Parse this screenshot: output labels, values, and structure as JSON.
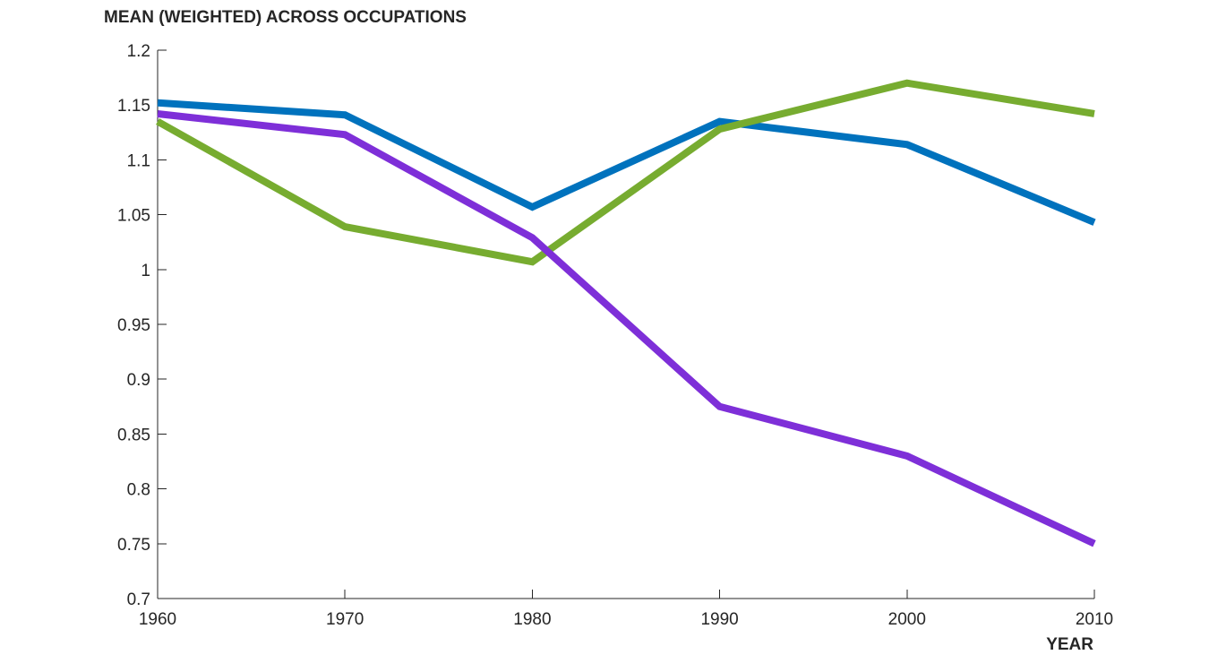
{
  "chart_data": {
    "type": "line",
    "title": "",
    "ylabel": "MEAN (WEIGHTED) ACROSS OCCUPATIONS",
    "xlabel": "YEAR",
    "x": [
      1960,
      1970,
      1980,
      1990,
      2000,
      2010
    ],
    "xlim": [
      1960,
      2010
    ],
    "ylim": [
      0.7,
      1.2
    ],
    "x_ticks": [
      "1960",
      "1970",
      "1980",
      "1990",
      "2000",
      "2010"
    ],
    "y_ticks": [
      "1.2",
      "1.15",
      "1.1",
      "1.05",
      "1",
      "0.95",
      "0.9",
      "0.85",
      "0.8",
      "0.75",
      "0.7"
    ],
    "grid": false,
    "legend": "none",
    "series": [
      {
        "color": "#0072BD",
        "values": [
          1.152,
          1.141,
          1.057,
          1.135,
          1.114,
          1.043
        ]
      },
      {
        "color": "#77AC30",
        "values": [
          1.135,
          1.039,
          1.007,
          1.128,
          1.17,
          1.142
        ]
      },
      {
        "color": "#7E2FD8",
        "values": [
          1.142,
          1.123,
          1.029,
          0.875,
          0.83,
          0.75
        ]
      }
    ]
  }
}
